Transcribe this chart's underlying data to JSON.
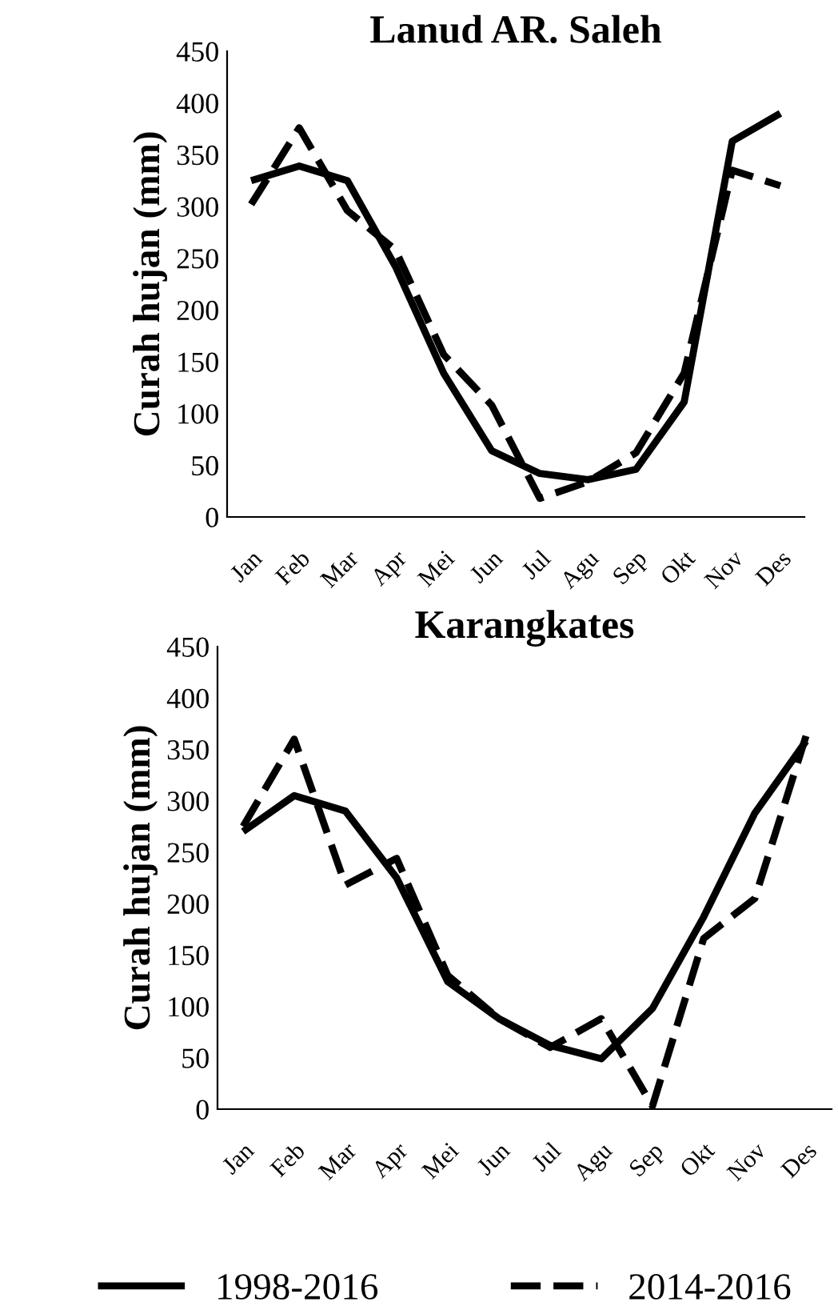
{
  "chart_data": [
    {
      "type": "line",
      "title": "Lanud AR. Saleh",
      "ylabel": "Curah hujan (mm)",
      "categories": [
        "Jan",
        "Feb",
        "Mar",
        "Apr",
        "Mei",
        "Jun",
        "Jul",
        "Agu",
        "Sep",
        "Okt",
        "Nov",
        "Des"
      ],
      "series": [
        {
          "color": "#000000",
          "line_style": "solid",
          "values": [
            325,
            339,
            325,
            242,
            139,
            64,
            42,
            36,
            46,
            111,
            363,
            390
          ]
        },
        {
          "color": "#000000",
          "line_style": "dashed",
          "values": [
            302,
            376,
            296,
            258,
            157,
            108,
            18,
            34,
            62,
            139,
            335,
            320
          ]
        }
      ],
      "ylim": [
        0,
        450
      ],
      "yticks": [
        0,
        50,
        100,
        150,
        200,
        250,
        300,
        350,
        400,
        450
      ],
      "grid": false,
      "legend": false
    },
    {
      "type": "line",
      "title": "Karangkates",
      "ylabel": "Curah hujan (mm)",
      "categories": [
        "Jan",
        "Feb",
        "Mar",
        "Apr",
        "Mei",
        "Jun",
        "Jul",
        "Agu",
        "Sep",
        "Okt",
        "Nov",
        "Des"
      ],
      "series": [
        {
          "name": "1998-2016",
          "color": "#000000",
          "line_style": "solid",
          "values": [
            270,
            305,
            290,
            225,
            124,
            88,
            62,
            49,
            98,
            187,
            288,
            358
          ]
        },
        {
          "name": "2014-2016",
          "color": "#000000",
          "line_style": "dashed",
          "values": [
            275,
            360,
            218,
            244,
            130,
            88,
            60,
            88,
            3,
            166,
            205,
            363
          ]
        }
      ],
      "ylim": [
        0,
        450
      ],
      "yticks": [
        0,
        50,
        100,
        150,
        200,
        250,
        300,
        350,
        400,
        450
      ],
      "grid": false,
      "legend": "bottom"
    }
  ]
}
